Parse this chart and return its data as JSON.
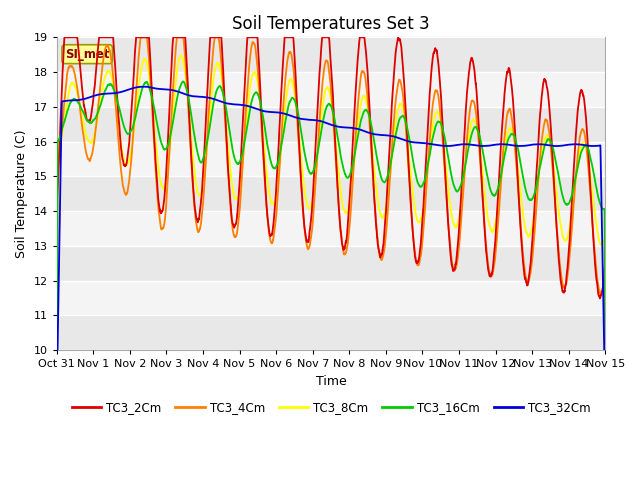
{
  "title": "Soil Temperatures Set 3",
  "xlabel": "Time",
  "ylabel": "Soil Temperature (C)",
  "ylim": [
    10.0,
    19.0
  ],
  "yticks": [
    10.0,
    11.0,
    12.0,
    13.0,
    14.0,
    15.0,
    16.0,
    17.0,
    18.0,
    19.0
  ],
  "xtick_labels": [
    "Oct 31",
    "Nov 1",
    "Nov 2",
    "Nov 3",
    "Nov 4",
    "Nov 5",
    "Nov 6",
    "Nov 7",
    "Nov 8",
    "Nov 9",
    "Nov 10",
    "Nov 11",
    "Nov 12",
    "Nov 13",
    "Nov 14",
    "Nov 15"
  ],
  "legend_labels": [
    "TC3_2Cm",
    "TC3_4Cm",
    "TC3_8Cm",
    "TC3_16Cm",
    "TC3_32Cm"
  ],
  "line_colors": [
    "#dd0000",
    "#ff8000",
    "#ffff00",
    "#00cc00",
    "#0000dd"
  ],
  "annotation_text": "SI_met",
  "background_color": "#ffffff",
  "plot_bg_color": "#ffffff",
  "band_colors": [
    "#e8e8e8",
    "#f4f4f4"
  ],
  "title_fontsize": 12,
  "axis_fontsize": 9,
  "tick_fontsize": 8
}
